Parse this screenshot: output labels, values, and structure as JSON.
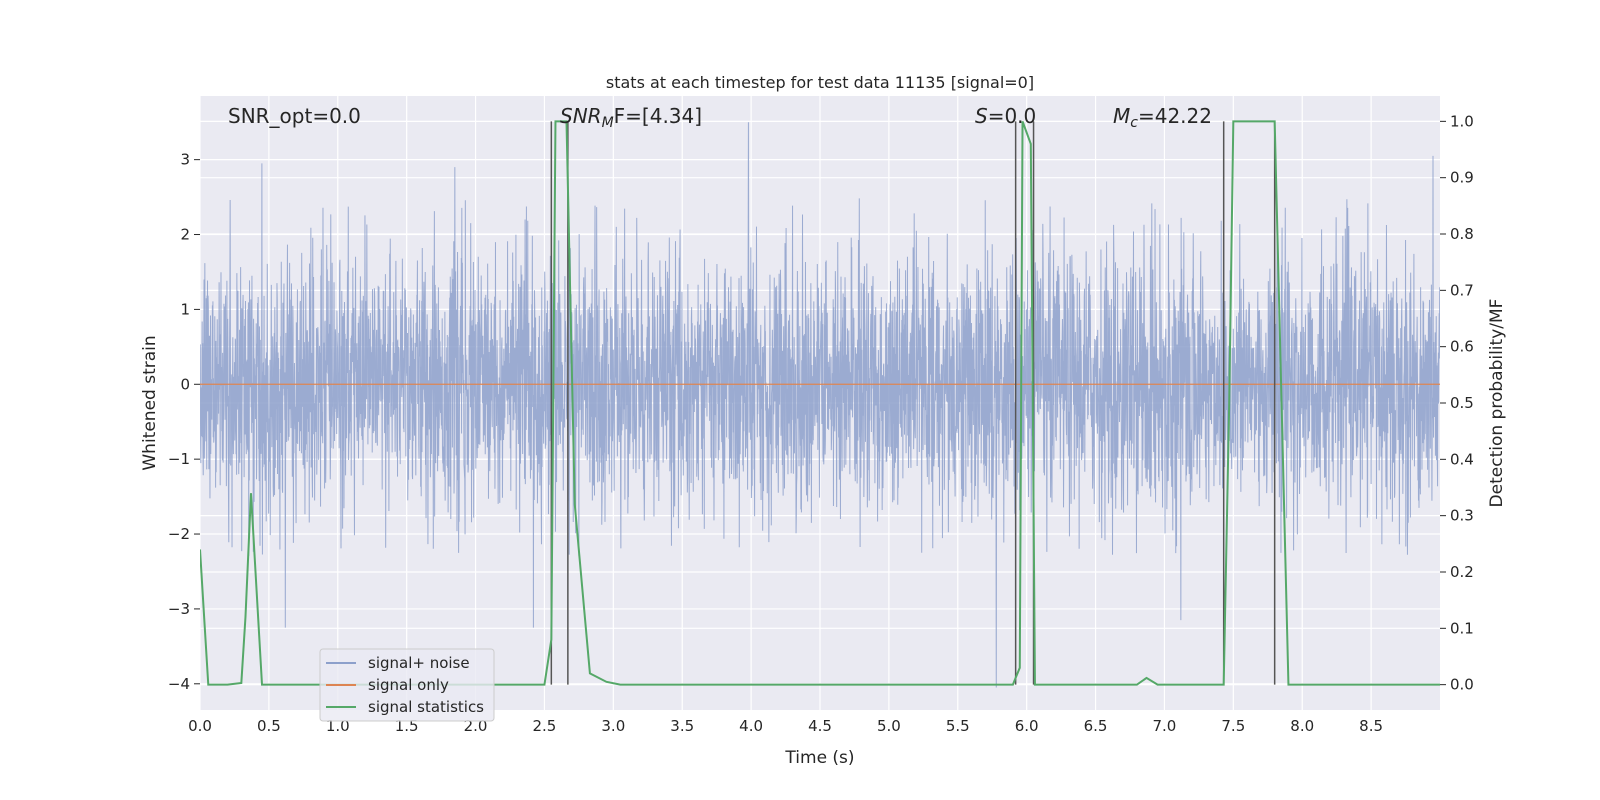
{
  "chart_data": {
    "type": "line",
    "title": "stats at each timestep for test data 11135 [signal=0]",
    "xlabel": "Time (s)",
    "ylabel": "Whitened strain",
    "y2label": "Detection probability/MF",
    "xlim": [
      0.0,
      9.0
    ],
    "ylim": [
      -4.35,
      3.85
    ],
    "y2lim": [
      -0.045,
      1.045
    ],
    "x_ticks": [
      "0.0",
      "0.5",
      "1.0",
      "1.5",
      "2.0",
      "2.5",
      "3.0",
      "3.5",
      "4.0",
      "4.5",
      "5.0",
      "5.5",
      "6.0",
      "6.5",
      "7.0",
      "7.5",
      "8.0",
      "8.5"
    ],
    "y_ticks": [
      "3",
      "2",
      "1",
      "0",
      "−1",
      "−2",
      "−3",
      "−4"
    ],
    "y2_ticks": [
      "1.0",
      "0.9",
      "0.8",
      "0.7",
      "0.6",
      "0.5",
      "0.4",
      "0.3",
      "0.2",
      "0.1",
      "0.0"
    ],
    "grid": true,
    "legend_position": "lower-left",
    "annotations": {
      "snr_opt": "SNR_opt=0.0",
      "snr_mf_main": "SNR",
      "snr_mf_sub": "M",
      "snr_mf_rest": "F=[4.34]",
      "s_main": "S",
      "s_rest": "=0.0",
      "mc_main": "M",
      "mc_sub": "c",
      "mc_rest": "=42.22"
    },
    "series": [
      {
        "name": "signal+ noise",
        "axis": "left",
        "color": "#8da0cb",
        "sample_rate_hz": 512,
        "envelope": {
          "noise_std": 0.85,
          "typical_range": [
            -2.3,
            2.5
          ],
          "extreme_points": [
            [
              0.45,
              2.95
            ],
            [
              0.62,
              -3.25
            ],
            [
              1.85,
              2.9
            ],
            [
              2.42,
              -3.25
            ],
            [
              3.98,
              3.5
            ],
            [
              5.78,
              -4.05
            ],
            [
              7.12,
              -3.15
            ],
            [
              8.95,
              3.05
            ]
          ]
        }
      },
      {
        "name": "signal only",
        "axis": "left",
        "color": "#dd8452",
        "x": [
          0.0,
          9.0
        ],
        "y": [
          0,
          0
        ]
      },
      {
        "name": "signal statistics",
        "axis": "right",
        "color": "#55a868",
        "x": [
          0.0,
          0.06,
          0.2,
          0.3,
          0.33,
          0.37,
          0.45,
          2.5,
          2.55,
          2.58,
          2.62,
          2.66,
          2.72,
          2.83,
          2.95,
          3.05,
          5.9,
          5.95,
          5.97,
          6.03,
          6.06,
          6.1,
          6.8,
          6.87,
          6.95,
          7.43,
          7.47,
          7.5,
          7.6,
          7.8,
          7.85,
          7.9,
          9.0
        ],
        "y": [
          0.24,
          0.0,
          0.0,
          0.003,
          0.12,
          0.34,
          0.0,
          0.0,
          0.08,
          1.0,
          1.0,
          1.0,
          0.32,
          0.02,
          0.005,
          0.0,
          0.0,
          0.03,
          1.0,
          0.96,
          0.0,
          0.0,
          0.0,
          0.012,
          0.0,
          0.0,
          0.5,
          1.0,
          1.0,
          1.0,
          0.5,
          0.0,
          0.0
        ]
      },
      {
        "name": "",
        "axis": "right",
        "type": "vlines",
        "color": "#555555",
        "x": [
          2.55,
          2.67,
          5.92,
          6.05,
          7.43,
          7.8
        ],
        "ymin": 0.0,
        "ymax": 1.0
      }
    ]
  }
}
